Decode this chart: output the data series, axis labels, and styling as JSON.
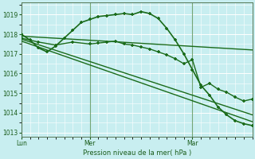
{
  "background_color": "#c8eef0",
  "grid_color": "#ffffff",
  "line_color": "#1a6b1a",
  "marker_color": "#1a6b1a",
  "axis_label_color": "#1a5c1a",
  "tick_label_color": "#1a5c1a",
  "xlabel": "Pression niveau de la mer( hPa )",
  "ylim": [
    1012.8,
    1019.6
  ],
  "yticks": [
    1013,
    1014,
    1015,
    1016,
    1017,
    1018,
    1019
  ],
  "day_labels": [
    "Lun",
    "Mer",
    "Mar"
  ],
  "day_positions": [
    0,
    8,
    20
  ],
  "xlim": [
    0,
    27
  ],
  "series": [
    {
      "x": [
        0,
        1,
        2,
        3,
        4,
        5,
        6,
        7,
        8,
        9,
        10,
        11,
        12,
        13,
        14,
        15,
        16,
        17,
        18,
        19,
        20,
        21,
        22,
        23,
        24,
        25,
        26,
        27
      ],
      "y": [
        1018.0,
        1017.7,
        1017.3,
        1017.1,
        1017.4,
        1017.8,
        1018.2,
        1018.6,
        1018.75,
        1018.9,
        1018.95,
        1019.0,
        1019.05,
        1019.0,
        1019.15,
        1019.05,
        1018.8,
        1018.3,
        1017.7,
        1017.0,
        1016.2,
        1015.4,
        1014.9,
        1014.3,
        1013.9,
        1013.6,
        1013.45,
        1013.35
      ],
      "marker": "+",
      "lw": 1.2
    },
    {
      "x": [
        0,
        27
      ],
      "y": [
        1017.9,
        1017.2
      ],
      "marker": null,
      "lw": 1.0
    },
    {
      "x": [
        0,
        27
      ],
      "y": [
        1017.75,
        1013.9
      ],
      "marker": null,
      "lw": 1.0
    },
    {
      "x": [
        0,
        27
      ],
      "y": [
        1017.65,
        1013.55
      ],
      "marker": null,
      "lw": 1.0
    },
    {
      "x": [
        0,
        2,
        4,
        6,
        8,
        9,
        10,
        11,
        12,
        13,
        14,
        15,
        16,
        17,
        18,
        19,
        20,
        21,
        22,
        23,
        24,
        25,
        26,
        27
      ],
      "y": [
        1017.8,
        1017.6,
        1017.45,
        1017.6,
        1017.5,
        1017.55,
        1017.6,
        1017.65,
        1017.5,
        1017.45,
        1017.35,
        1017.25,
        1017.1,
        1016.95,
        1016.75,
        1016.5,
        1016.7,
        1015.3,
        1015.5,
        1015.2,
        1015.05,
        1014.8,
        1014.6,
        1014.7
      ],
      "marker": "+",
      "lw": 1.0
    }
  ]
}
